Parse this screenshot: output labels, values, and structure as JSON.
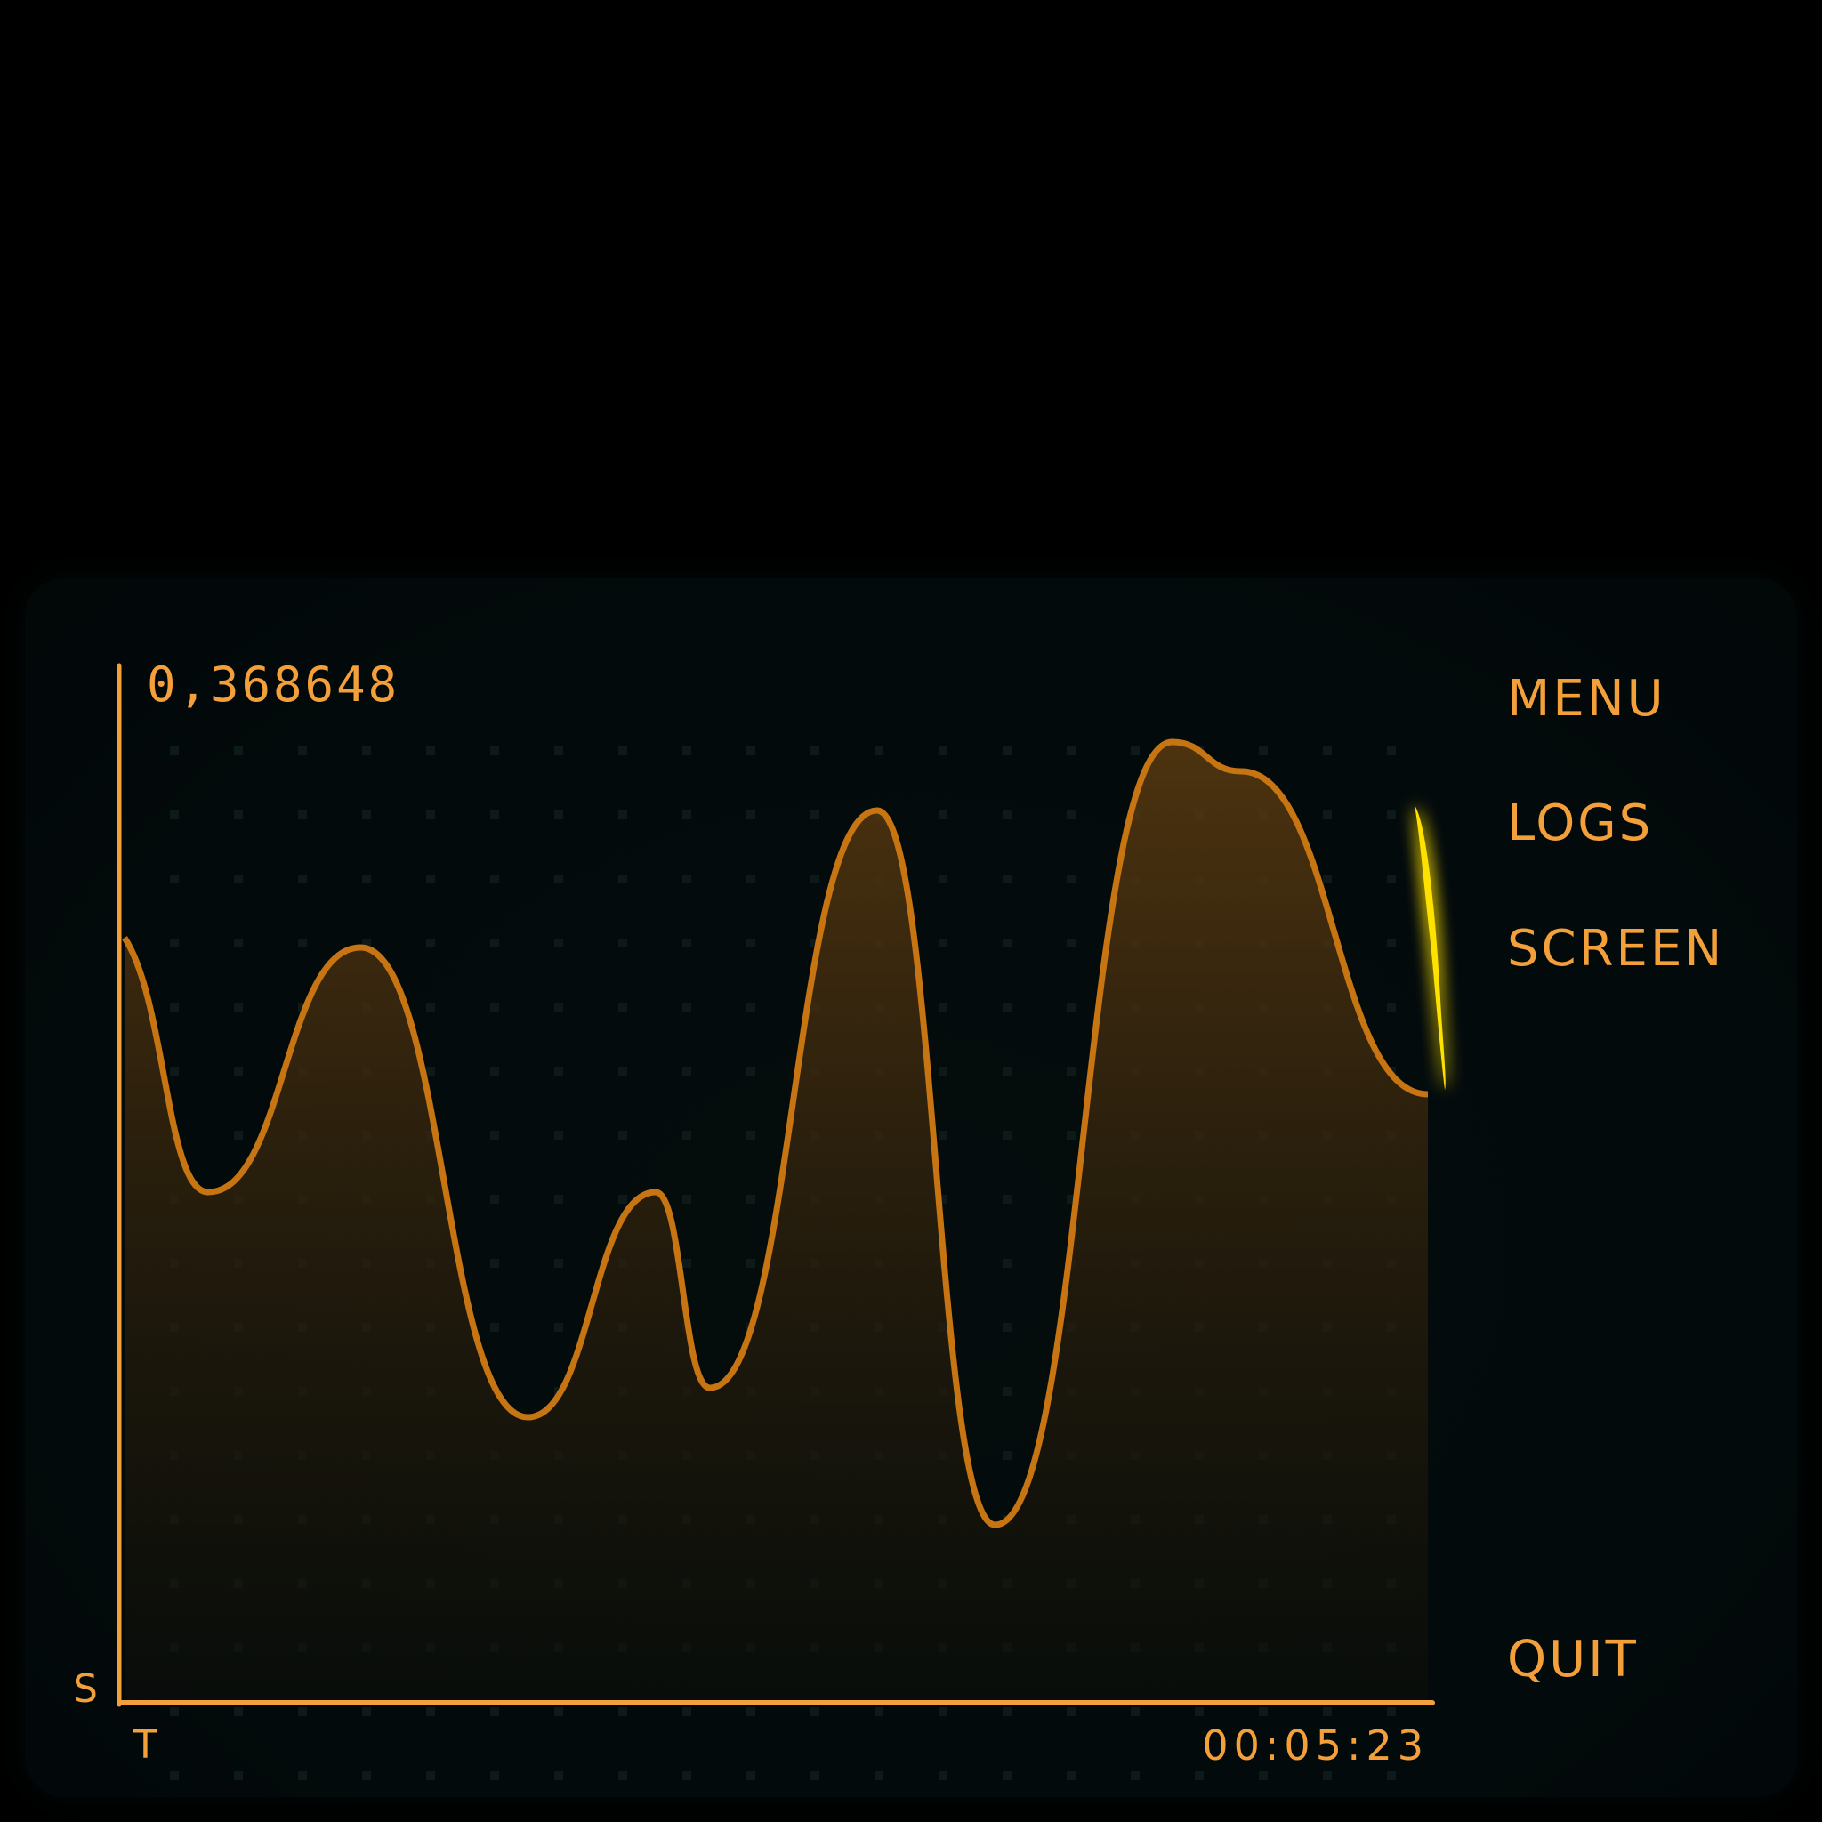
{
  "readout": {
    "value": "0,368648"
  },
  "menu": {
    "items": [
      {
        "label": "MENU"
      },
      {
        "label": "LOGS"
      },
      {
        "label": "SCREEN"
      },
      {
        "label": "QUIT"
      }
    ]
  },
  "axes": {
    "y_label": "S",
    "x_label": "T"
  },
  "timer": {
    "value": "00:05:23"
  },
  "colors": {
    "accent": "#f4a03a",
    "curve": "#c77412",
    "glow": "#ffe100",
    "background": "#030a0b"
  },
  "chart_data": {
    "type": "area",
    "xlabel": "T",
    "ylabel": "S",
    "grid": true,
    "x": [
      0,
      85,
      240,
      410,
      540,
      595,
      765,
      885,
      1065,
      1135,
      1325
    ],
    "y": [
      0.78,
      0.52,
      0.77,
      0.29,
      0.52,
      0.32,
      0.91,
      0.18,
      0.98,
      0.95,
      0.62
    ]
  }
}
